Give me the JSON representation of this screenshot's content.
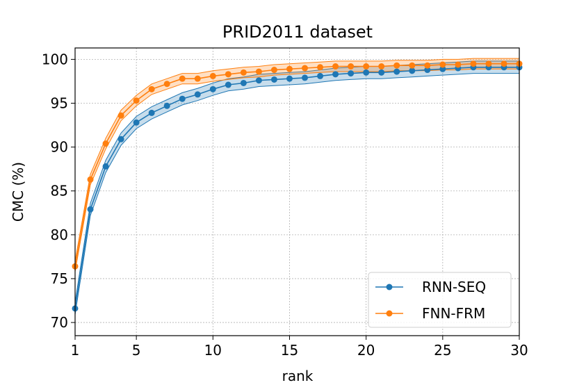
{
  "chart_data": {
    "type": "line",
    "title": "PRID2011 dataset",
    "xlabel": "rank",
    "ylabel": "CMC (%)",
    "xlim": [
      1,
      30
    ],
    "ylim": [
      68.5,
      101.3
    ],
    "xticks": [
      1,
      5,
      10,
      15,
      20,
      25,
      30
    ],
    "yticks": [
      70,
      75,
      80,
      85,
      90,
      95,
      100
    ],
    "grid": true,
    "legend_position": "bottom-right",
    "x": [
      1,
      2,
      3,
      4,
      5,
      6,
      7,
      8,
      9,
      10,
      11,
      12,
      13,
      14,
      15,
      16,
      17,
      18,
      19,
      20,
      21,
      22,
      23,
      24,
      25,
      26,
      27,
      28,
      29,
      30
    ],
    "series": [
      {
        "name": "RNN-SEQ",
        "color": "#1f77b4",
        "values": [
          71.6,
          82.9,
          87.8,
          90.9,
          92.8,
          93.9,
          94.7,
          95.5,
          96.0,
          96.6,
          97.1,
          97.3,
          97.6,
          97.7,
          97.8,
          97.9,
          98.1,
          98.3,
          98.4,
          98.5,
          98.5,
          98.6,
          98.7,
          98.8,
          98.9,
          99.0,
          99.1,
          99.1,
          99.1,
          99.1
        ],
        "band": 0.7
      },
      {
        "name": "FNN-FRM",
        "color": "#ff7f0e",
        "values": [
          76.4,
          86.3,
          90.4,
          93.6,
          95.3,
          96.6,
          97.2,
          97.8,
          97.8,
          98.1,
          98.3,
          98.5,
          98.6,
          98.8,
          98.9,
          99.0,
          99.1,
          99.2,
          99.2,
          99.2,
          99.2,
          99.3,
          99.3,
          99.3,
          99.4,
          99.4,
          99.5,
          99.5,
          99.5,
          99.5
        ],
        "band": 0.6
      }
    ]
  }
}
